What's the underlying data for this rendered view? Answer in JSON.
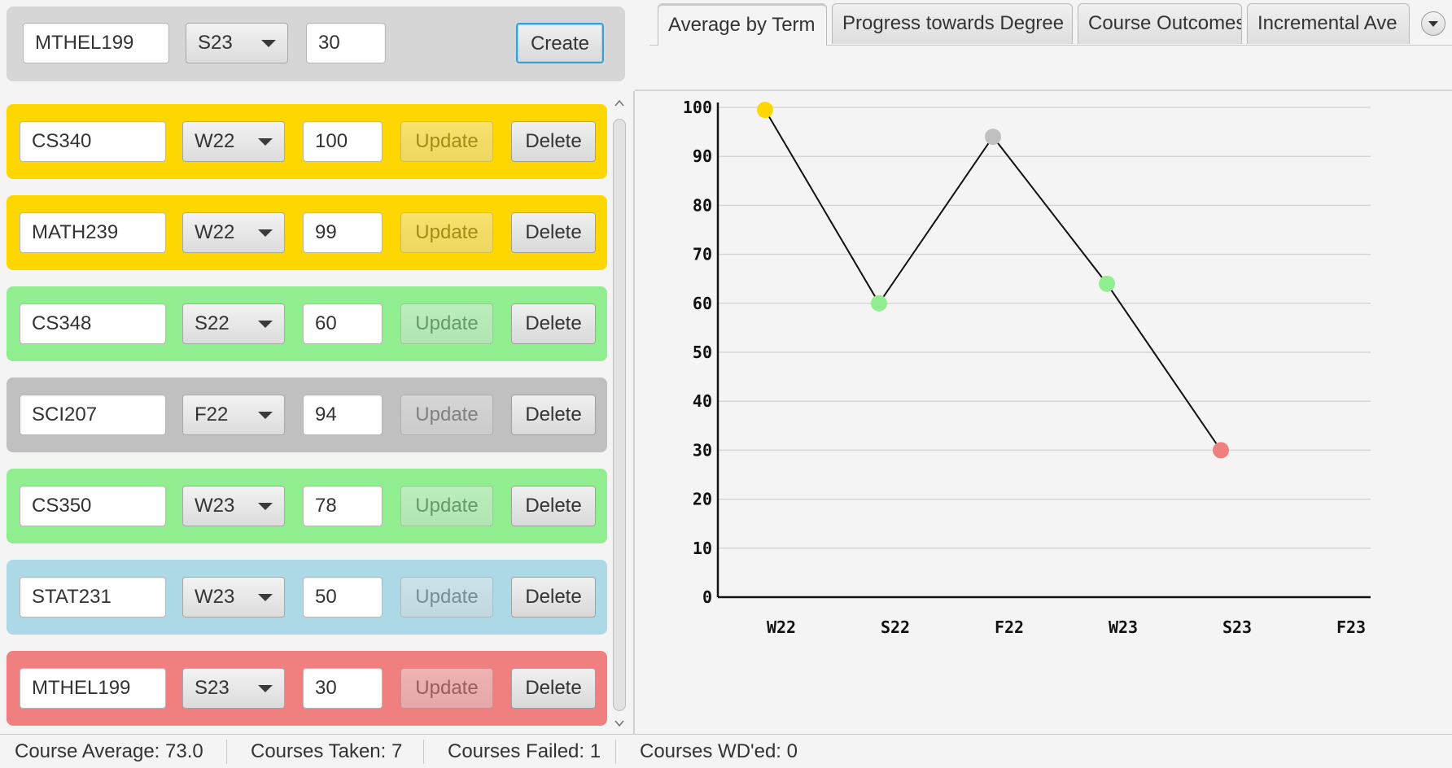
{
  "create_form": {
    "course_value": "MTHEL199",
    "term_value": "S23",
    "grade_value": "30",
    "create_label": "Create"
  },
  "courses": [
    {
      "course": "CS340",
      "term": "W22",
      "grade": "100",
      "color": "#FFD700",
      "update_label": "Update",
      "delete_label": "Delete"
    },
    {
      "course": "MATH239",
      "term": "W22",
      "grade": "99",
      "color": "#FFD700",
      "update_label": "Update",
      "delete_label": "Delete"
    },
    {
      "course": "CS348",
      "term": "S22",
      "grade": "60",
      "color": "#90EE90",
      "update_label": "Update",
      "delete_label": "Delete"
    },
    {
      "course": "SCI207",
      "term": "F22",
      "grade": "94",
      "color": "#C0C0C0",
      "update_label": "Update",
      "delete_label": "Delete"
    },
    {
      "course": "CS350",
      "term": "W23",
      "grade": "78",
      "color": "#90EE90",
      "update_label": "Update",
      "delete_label": "Delete"
    },
    {
      "course": "STAT231",
      "term": "W23",
      "grade": "50",
      "color": "#ADD8E6",
      "update_label": "Update",
      "delete_label": "Delete"
    },
    {
      "course": "MTHEL199",
      "term": "S23",
      "grade": "30",
      "color": "#F08080",
      "update_label": "Update",
      "delete_label": "Delete"
    }
  ],
  "tabs": [
    {
      "label": "Average by Term",
      "active": true
    },
    {
      "label": "Progress towards Degree",
      "active": false
    },
    {
      "label": "Course Outcomes",
      "active": false
    },
    {
      "label": "Incremental Ave",
      "active": false
    }
  ],
  "chart_data": {
    "type": "line",
    "categories": [
      "W22",
      "S22",
      "F22",
      "W23",
      "S23",
      "F23"
    ],
    "ylim": [
      0,
      100
    ],
    "yticks": [
      0,
      10,
      20,
      30,
      40,
      50,
      60,
      70,
      80,
      90,
      100
    ],
    "grid": true,
    "series": [
      {
        "points": [
          {
            "x": "W22",
            "y": 99.5,
            "color": "#FFD700"
          },
          {
            "x": "S22",
            "y": 60,
            "color": "#90EE90"
          },
          {
            "x": "F22",
            "y": 94,
            "color": "#C0C0C0"
          },
          {
            "x": "W23",
            "y": 64,
            "color": "#90EE90"
          },
          {
            "x": "S23",
            "y": 30,
            "color": "#F08080"
          }
        ]
      }
    ]
  },
  "status": {
    "average": "Course Average: 73.0",
    "taken": "Courses Taken: 7",
    "failed": "Courses Failed: 1",
    "wd": "Courses WD'ed: 0"
  }
}
